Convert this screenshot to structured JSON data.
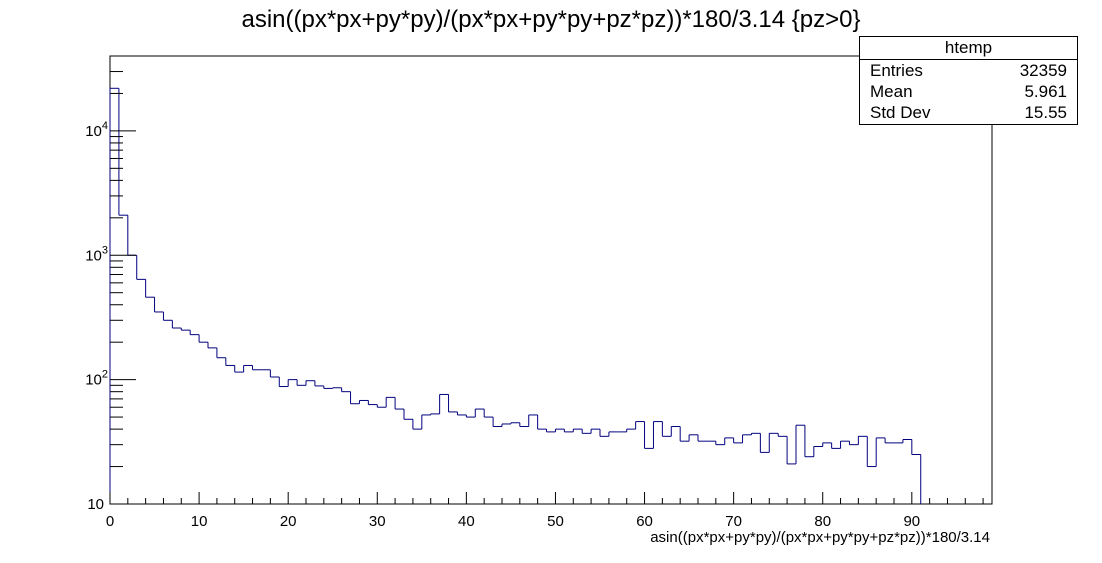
{
  "chart_data": {
    "type": "histogram",
    "title": "asin((px*px+py*py)/(px*px+py*py+pz*pz))*180/3.14 {pz>0}",
    "xlabel": "asin((px*px+py*py)/(px*px+py*py+pz*pz))*180/3.14",
    "ylabel": "",
    "xlim": [
      0,
      99
    ],
    "ylim": [
      10,
      40000
    ],
    "yscale": "log",
    "bin_width": 1,
    "x_ticks": [
      0,
      10,
      20,
      30,
      40,
      50,
      60,
      70,
      80,
      90
    ],
    "y_ticks": [
      {
        "base": "10",
        "exp": ""
      },
      {
        "base": "10",
        "exp": "2"
      },
      {
        "base": "10",
        "exp": "3"
      },
      {
        "base": "10",
        "exp": "4"
      }
    ],
    "y_tick_values": [
      10,
      100,
      1000,
      10000
    ],
    "line_color": "#00007f",
    "bin_edges_start": 0,
    "counts": [
      22000,
      2100,
      1000,
      640,
      460,
      350,
      300,
      260,
      250,
      230,
      200,
      180,
      150,
      130,
      115,
      130,
      120,
      120,
      105,
      88,
      100,
      90,
      98,
      89,
      85,
      86,
      80,
      64,
      68,
      63,
      60,
      72,
      58,
      48,
      40,
      52,
      53,
      76,
      55,
      52,
      50,
      58,
      50,
      42,
      44,
      45,
      42,
      52,
      40,
      38,
      40,
      38,
      40,
      37,
      40,
      35,
      38,
      38,
      40,
      46,
      28,
      46,
      35,
      42,
      32,
      36,
      32,
      32,
      30,
      34,
      31,
      36,
      37,
      26,
      37,
      35,
      21,
      43,
      24,
      29,
      31,
      28,
      32,
      30,
      35,
      20,
      34,
      31,
      31,
      33,
      25,
      0,
      0,
      0,
      0,
      0,
      0,
      0,
      0
    ],
    "stats": {
      "name": "htemp",
      "entries_label": "Entries",
      "entries": "32359",
      "mean_label": "Mean",
      "mean": "5.961",
      "std_label": "Std Dev",
      "std": "15.55"
    }
  }
}
